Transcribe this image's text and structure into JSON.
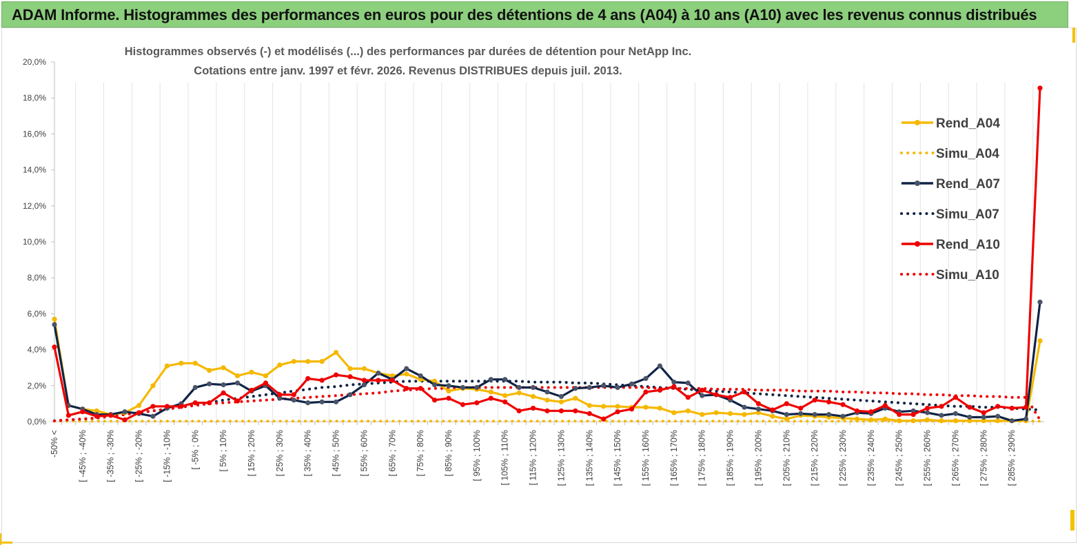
{
  "header": {
    "title": "ADAM Informe. Histogrammes des performances en euros pour des détentions de 4 ans (A04) à 10 ans (A10) avec les revenus connus distribués"
  },
  "chart_data": {
    "type": "line",
    "title": "Histogrammes observés (-) et modélisés (...) des performances par durées de détention pour NetApp Inc.",
    "subtitle": "Cotations entre janv. 1997 et févr. 2026. Revenus DISTRIBUES depuis juil. 2013.",
    "xlabel": "",
    "ylabel": "",
    "ylim": [
      0,
      20
    ],
    "y_ticks": [
      "0,0%",
      "2,0%",
      "4,0%",
      "6,0%",
      "8,0%",
      "10,0%",
      "12,0%",
      "14,0%",
      "16,0%",
      "18,0%",
      "20,0%"
    ],
    "x_labels": [
      "-50% <",
      "[ -45% ; -40%",
      "[ -35% ; -30%",
      "[ -25% ; -20%",
      "[ -15% ; -10%",
      "[ -5% ; 0%",
      "[ 5% ; 10%",
      "[ 15% ; 20%",
      "[ 25% ; 30%",
      "[ 35% ; 40%",
      "[ 45% ; 50%",
      "[ 55% ; 60%",
      "[ 65% ; 70%",
      "[ 75% ; 80%",
      "[ 85% ; 90%",
      "[ 95% ; 100%",
      "[ 105% ; 110%",
      "[ 115% ; 120%",
      "[ 125% ; 130%",
      "[ 135% ; 140%",
      "[ 145% ; 150%",
      "[ 155% ; 160%",
      "[ 165% ; 170%",
      "[ 175% ; 180%",
      "[ 185% ; 190%",
      "[ 195% ; 200%",
      "[ 205% ; 210%",
      "[ 215% ; 220%",
      "[ 225% ; 230%",
      "[ 235% ; 240%",
      "[ 245% ; 250%",
      "[ 255% ; 260%",
      "[ 265% ; 270%",
      "[ 275% ; 280%",
      "[ 285% ; 290%"
    ],
    "grid": true,
    "legend_position": "right",
    "series": [
      {
        "name": "Rend_A04",
        "style": "solid",
        "color": "#f5b800",
        "values": [
          5.7,
          0.9,
          0.7,
          0.6,
          0.4,
          0.5,
          0.9,
          2.0,
          3.1,
          3.25,
          3.25,
          2.85,
          3.0,
          2.55,
          2.75,
          2.55,
          3.15,
          3.35,
          3.35,
          3.35,
          3.85,
          2.95,
          2.95,
          2.7,
          2.55,
          2.65,
          2.35,
          2.25,
          1.7,
          1.85,
          1.8,
          1.65,
          1.45,
          1.6,
          1.4,
          1.2,
          1.1,
          1.3,
          0.9,
          0.85,
          0.85,
          0.8,
          0.8,
          0.75,
          0.5,
          0.6,
          0.4,
          0.5,
          0.45,
          0.4,
          0.5,
          0.3,
          0.15,
          0.35,
          0.3,
          0.25,
          0.2,
          0.15,
          0.1,
          0.15,
          0.05,
          0.05,
          0.1,
          0.05,
          0.05,
          0.05,
          0.05,
          0.05,
          0.05,
          0.05,
          4.5
        ]
      },
      {
        "name": "Simu_A04",
        "style": "dotted",
        "color": "#f5b800",
        "values": [
          0.03,
          0.03,
          0.03,
          0.03,
          0.03,
          0.03,
          0.03,
          0.03,
          0.03,
          0.03,
          0.03,
          0.03,
          0.03,
          0.03,
          0.03,
          0.03,
          0.03,
          0.03,
          0.03,
          0.03,
          0.03,
          0.03,
          0.03,
          0.03,
          0.03,
          0.03,
          0.03,
          0.03,
          0.03,
          0.03,
          0.03,
          0.03,
          0.03,
          0.03,
          0.03,
          0.03,
          0.03,
          0.03,
          0.03,
          0.03,
          0.03,
          0.03,
          0.03,
          0.03,
          0.03,
          0.03,
          0.03,
          0.03,
          0.03,
          0.03,
          0.03,
          0.03,
          0.03,
          0.03,
          0.03,
          0.03,
          0.03,
          0.03,
          0.03,
          0.03,
          0.03,
          0.03,
          0.03,
          0.03,
          0.03,
          0.03,
          0.03,
          0.03,
          0.03,
          0.03,
          0.03
        ]
      },
      {
        "name": "Rend_A07",
        "style": "solid",
        "color": "#0f2346",
        "values": [
          5.4,
          0.9,
          0.7,
          0.4,
          0.4,
          0.55,
          0.45,
          0.3,
          0.75,
          1.0,
          1.9,
          2.1,
          2.05,
          2.15,
          1.7,
          2.0,
          1.3,
          1.2,
          1.05,
          1.1,
          1.1,
          1.5,
          2.05,
          2.7,
          2.35,
          2.95,
          2.55,
          2.05,
          2.0,
          1.9,
          1.9,
          2.35,
          2.35,
          1.9,
          1.9,
          1.65,
          1.4,
          1.85,
          1.9,
          2.0,
          1.9,
          2.1,
          2.4,
          3.1,
          2.2,
          2.15,
          1.45,
          1.5,
          1.2,
          0.8,
          0.7,
          0.6,
          0.4,
          0.45,
          0.4,
          0.4,
          0.3,
          0.5,
          0.45,
          0.75,
          0.55,
          0.6,
          0.5,
          0.35,
          0.45,
          0.25,
          0.25,
          0.3,
          0.05,
          0.15,
          6.65
        ]
      },
      {
        "name": "Simu_A07",
        "style": "dotted",
        "color": "#0f2346",
        "values": [
          0.05,
          0.1,
          0.15,
          0.2,
          0.3,
          0.4,
          0.5,
          0.6,
          0.7,
          0.8,
          0.95,
          1.05,
          1.2,
          1.3,
          1.4,
          1.5,
          1.6,
          1.7,
          1.8,
          1.9,
          1.95,
          2.05,
          2.1,
          2.15,
          2.2,
          2.25,
          2.25,
          2.25,
          2.25,
          2.25,
          2.25,
          2.25,
          2.25,
          2.25,
          2.2,
          2.2,
          2.2,
          2.15,
          2.15,
          2.1,
          2.05,
          2.0,
          1.95,
          1.9,
          1.85,
          1.8,
          1.75,
          1.7,
          1.65,
          1.6,
          1.55,
          1.5,
          1.45,
          1.4,
          1.35,
          1.3,
          1.25,
          1.2,
          1.15,
          1.1,
          1.05,
          1.0,
          0.95,
          0.9,
          0.85,
          0.85,
          0.8,
          0.8,
          0.75,
          0.7,
          0.65
        ]
      },
      {
        "name": "Rend_A10",
        "style": "solid",
        "color": "#ee0000",
        "values": [
          4.15,
          0.35,
          0.55,
          0.3,
          0.35,
          0.1,
          0.5,
          0.85,
          0.85,
          0.85,
          1.05,
          1.05,
          1.6,
          1.15,
          1.75,
          2.15,
          1.5,
          1.5,
          2.4,
          2.3,
          2.6,
          2.5,
          2.3,
          2.3,
          2.3,
          1.85,
          1.85,
          1.2,
          1.3,
          0.95,
          1.05,
          1.3,
          1.1,
          0.6,
          0.75,
          0.6,
          0.6,
          0.6,
          0.45,
          0.15,
          0.55,
          0.7,
          1.65,
          1.75,
          1.95,
          1.35,
          1.75,
          1.5,
          1.35,
          1.65,
          1.0,
          0.65,
          1.0,
          0.75,
          1.2,
          1.1,
          0.95,
          0.6,
          0.55,
          0.9,
          0.4,
          0.4,
          0.75,
          0.85,
          1.35,
          0.8,
          0.5,
          0.85,
          0.75,
          0.8,
          18.55
        ]
      },
      {
        "name": "Simu_A10",
        "style": "dotted",
        "color": "#ee0000",
        "values": [
          0.05,
          0.1,
          0.15,
          0.2,
          0.3,
          0.4,
          0.5,
          0.6,
          0.7,
          0.8,
          0.9,
          1.0,
          1.05,
          1.1,
          1.15,
          1.2,
          1.25,
          1.3,
          1.35,
          1.4,
          1.45,
          1.5,
          1.55,
          1.6,
          1.7,
          1.75,
          1.8,
          1.85,
          1.85,
          1.9,
          1.9,
          1.9,
          1.9,
          1.9,
          1.9,
          1.9,
          1.9,
          1.9,
          1.9,
          1.9,
          1.9,
          1.9,
          1.9,
          1.85,
          1.85,
          1.85,
          1.85,
          1.8,
          1.8,
          1.8,
          1.75,
          1.75,
          1.75,
          1.7,
          1.7,
          1.7,
          1.65,
          1.65,
          1.6,
          1.6,
          1.55,
          1.55,
          1.5,
          1.5,
          1.45,
          1.45,
          1.4,
          1.4,
          1.35,
          1.35,
          0.1
        ]
      }
    ]
  }
}
